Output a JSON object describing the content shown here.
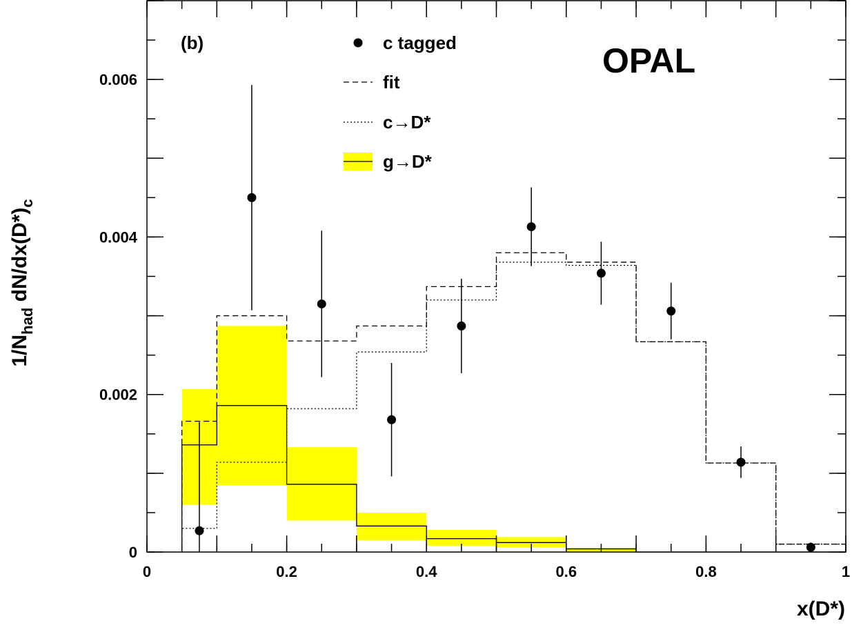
{
  "chart_data": {
    "type": "step",
    "panel_label": "(b)",
    "experiment": "OPAL",
    "xlabel": "x(D*)",
    "ylabel": "1/Nhad dN/dx(D*)c",
    "ylabel_parts": {
      "main": "1/N",
      "sub1": "had",
      "mid": " dN/dx(D*)",
      "sub2": "c"
    },
    "xlim": [
      0,
      1
    ],
    "ylim": [
      0,
      0.007
    ],
    "x_ticks": [
      0,
      0.2,
      0.4,
      0.6,
      0.8,
      1
    ],
    "x_tick_labels": [
      "0",
      "0.2",
      "0.4",
      "0.6",
      "0.8",
      "1"
    ],
    "y_ticks": [
      0,
      0.002,
      0.004,
      0.006
    ],
    "y_tick_labels": [
      "0",
      "0.002",
      "0.004",
      "0.006"
    ],
    "legend": {
      "placement": "top-center",
      "entries": [
        {
          "key": "data",
          "label": "c tagged"
        },
        {
          "key": "fit",
          "label": "fit"
        },
        {
          "key": "c",
          "label": "c→D*"
        },
        {
          "key": "g",
          "label": "g→D*"
        }
      ]
    },
    "colors": {
      "band": "#ffff00",
      "line": "#000000"
    },
    "bin_edges": [
      0.05,
      0.1,
      0.2,
      0.3,
      0.4,
      0.5,
      0.6,
      0.7,
      0.8,
      0.9,
      1.0
    ],
    "series": [
      {
        "key": "data",
        "style": "points",
        "x": [
          0.075,
          0.15,
          0.25,
          0.35,
          0.45,
          0.55,
          0.65,
          0.75,
          0.85,
          0.95
        ],
        "y": [
          0.00027,
          0.0045,
          0.00315,
          0.00168,
          0.00287,
          0.00413,
          0.00354,
          0.00306,
          0.00114,
          6e-05
        ],
        "err_low": [
          0.00027,
          0.00143,
          0.00093,
          0.00072,
          0.0006,
          0.0005,
          0.0004,
          0.00036,
          0.0002,
          6e-05
        ],
        "err_high": [
          0.00138,
          0.00143,
          0.00093,
          0.00072,
          0.0006,
          0.0005,
          0.0004,
          0.00036,
          0.0002,
          6e-05
        ]
      },
      {
        "key": "fit",
        "style": "dashed-step",
        "values": [
          0.00166,
          0.003,
          0.00268,
          0.00287,
          0.00337,
          0.0038,
          0.00368,
          0.00267,
          0.00113,
          0.0001
        ]
      },
      {
        "key": "c",
        "style": "dotted-step",
        "values": [
          0.0003,
          0.00114,
          0.00182,
          0.00254,
          0.0032,
          0.00368,
          0.00364,
          0.00267,
          0.00113,
          0.0001
        ]
      },
      {
        "key": "g",
        "style": "solid-step-band",
        "values": [
          0.00136,
          0.00186,
          0.00086,
          0.00033,
          0.00017,
          0.00012,
          4e-05,
          0,
          0,
          0
        ],
        "band_low": [
          0.0006,
          0.00085,
          0.0004,
          0.00015,
          8e-05,
          6e-05,
          1e-05,
          0,
          0,
          0
        ],
        "band_high": [
          0.00207,
          0.00287,
          0.00133,
          0.0005,
          0.00028,
          0.00019,
          5e-05,
          0,
          0,
          0
        ]
      }
    ]
  }
}
